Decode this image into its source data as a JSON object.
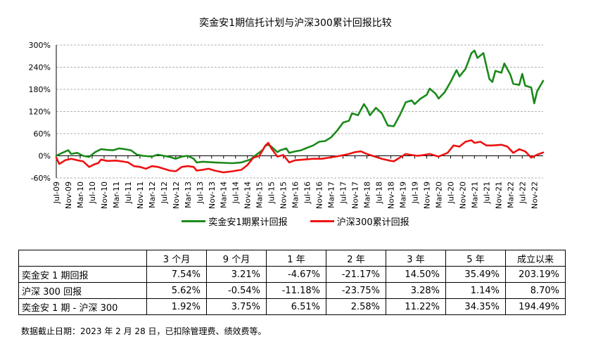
{
  "chart_data": {
    "type": "line",
    "title": "奕金安1期信托计划与沪深300累计回报比较",
    "ytick_labels": [
      "300%",
      "240%",
      "180%",
      "120%",
      "60%",
      "0%",
      "-60%"
    ],
    "ylim": [
      -60,
      300
    ],
    "yticks": [
      300,
      240,
      180,
      120,
      60,
      0,
      -60
    ],
    "grid": "dashed horizontal",
    "legend_position": "bottom",
    "xlim": [
      "2009-07",
      "2023-02"
    ],
    "xtick_labels": [
      "Jul-09",
      "Nov-09",
      "Mar-10",
      "Jul-10",
      "Nov-10",
      "Mar-11",
      "Jul-11",
      "Nov-11",
      "Mar-12",
      "Jul-12",
      "Nov-12",
      "Mar-13",
      "Jul-13",
      "Nov-13",
      "Mar-14",
      "Jul-14",
      "Nov-14",
      "Mar-15",
      "Jul-15",
      "Nov-15",
      "Mar-16",
      "Jul-16",
      "Nov-16",
      "Mar-17",
      "Jul-17",
      "Nov-17",
      "Mar-18",
      "Jul-18",
      "Nov-18",
      "Mar-19",
      "Jul-19",
      "Nov-19",
      "Mar-20",
      "Jul-20",
      "Nov-20",
      "Mar-21",
      "Jul-21",
      "Nov-21",
      "Mar-22",
      "Jul-22",
      "Nov-22"
    ],
    "series": [
      {
        "name": "奕金安1期累计回报",
        "color": "#1a8a1a",
        "points": [
          [
            "2009-07",
            0
          ],
          [
            "2009-09",
            8
          ],
          [
            "2009-11",
            15
          ],
          [
            "2009-12",
            5
          ],
          [
            "2010-02",
            8
          ],
          [
            "2010-04",
            0
          ],
          [
            "2010-06",
            -3
          ],
          [
            "2010-08",
            10
          ],
          [
            "2010-10",
            18
          ],
          [
            "2010-12",
            16
          ],
          [
            "2011-02",
            15
          ],
          [
            "2011-04",
            20
          ],
          [
            "2011-06",
            18
          ],
          [
            "2011-08",
            15
          ],
          [
            "2011-10",
            3
          ],
          [
            "2011-12",
            0
          ],
          [
            "2012-03",
            -2
          ],
          [
            "2012-05",
            3
          ],
          [
            "2012-07",
            0
          ],
          [
            "2012-09",
            -3
          ],
          [
            "2012-11",
            -8
          ],
          [
            "2013-01",
            -2
          ],
          [
            "2013-03",
            0
          ],
          [
            "2013-05",
            -8
          ],
          [
            "2013-06",
            -18
          ],
          [
            "2013-08",
            -16
          ],
          [
            "2013-10",
            -17
          ],
          [
            "2013-12",
            -18
          ],
          [
            "2014-03",
            -19
          ],
          [
            "2014-06",
            -20
          ],
          [
            "2014-09",
            -18
          ],
          [
            "2014-12",
            -10
          ],
          [
            "2015-02",
            3
          ],
          [
            "2015-04",
            15
          ],
          [
            "2015-05",
            27
          ],
          [
            "2015-06",
            30
          ],
          [
            "2015-07",
            25
          ],
          [
            "2015-09",
            10
          ],
          [
            "2015-10",
            15
          ],
          [
            "2015-12",
            20
          ],
          [
            "2016-01",
            8
          ],
          [
            "2016-03",
            12
          ],
          [
            "2016-05",
            15
          ],
          [
            "2016-07",
            22
          ],
          [
            "2016-09",
            28
          ],
          [
            "2016-11",
            38
          ],
          [
            "2017-01",
            40
          ],
          [
            "2017-03",
            50
          ],
          [
            "2017-05",
            68
          ],
          [
            "2017-07",
            90
          ],
          [
            "2017-09",
            95
          ],
          [
            "2017-10",
            115
          ],
          [
            "2017-12",
            110
          ],
          [
            "2018-02",
            140
          ],
          [
            "2018-03",
            128
          ],
          [
            "2018-04",
            110
          ],
          [
            "2018-06",
            130
          ],
          [
            "2018-08",
            115
          ],
          [
            "2018-10",
            82
          ],
          [
            "2018-12",
            80
          ],
          [
            "2019-02",
            110
          ],
          [
            "2019-04",
            145
          ],
          [
            "2019-06",
            150
          ],
          [
            "2019-07",
            140
          ],
          [
            "2019-09",
            155
          ],
          [
            "2019-11",
            165
          ],
          [
            "2019-12",
            182
          ],
          [
            "2020-02",
            168
          ],
          [
            "2020-03",
            155
          ],
          [
            "2020-05",
            172
          ],
          [
            "2020-07",
            200
          ],
          [
            "2020-09",
            232
          ],
          [
            "2020-10",
            215
          ],
          [
            "2020-12",
            235
          ],
          [
            "2021-02",
            278
          ],
          [
            "2021-03",
            285
          ],
          [
            "2021-04",
            265
          ],
          [
            "2021-06",
            278
          ],
          [
            "2021-08",
            208
          ],
          [
            "2021-09",
            200
          ],
          [
            "2021-10",
            230
          ],
          [
            "2021-12",
            225
          ],
          [
            "2022-01",
            250
          ],
          [
            "2022-03",
            220
          ],
          [
            "2022-04",
            195
          ],
          [
            "2022-06",
            192
          ],
          [
            "2022-07",
            222
          ],
          [
            "2022-08",
            190
          ],
          [
            "2022-10",
            185
          ],
          [
            "2022-11",
            142
          ],
          [
            "2022-12",
            175
          ],
          [
            "2023-02",
            203
          ]
        ]
      },
      {
        "name": "沪深300累计回报",
        "color": "#ee1111",
        "points": [
          [
            "2009-07",
            -5
          ],
          [
            "2009-08",
            -22
          ],
          [
            "2009-10",
            -12
          ],
          [
            "2009-12",
            -8
          ],
          [
            "2010-02",
            -12
          ],
          [
            "2010-04",
            -15
          ],
          [
            "2010-06",
            -30
          ],
          [
            "2010-08",
            -22
          ],
          [
            "2010-09",
            -20
          ],
          [
            "2010-10",
            -10
          ],
          [
            "2010-12",
            -14
          ],
          [
            "2011-03",
            -13
          ],
          [
            "2011-05",
            -15
          ],
          [
            "2011-07",
            -18
          ],
          [
            "2011-09",
            -28
          ],
          [
            "2011-11",
            -30
          ],
          [
            "2012-01",
            -35
          ],
          [
            "2012-03",
            -28
          ],
          [
            "2012-05",
            -30
          ],
          [
            "2012-07",
            -35
          ],
          [
            "2012-09",
            -40
          ],
          [
            "2012-11",
            -42
          ],
          [
            "2013-01",
            -30
          ],
          [
            "2013-03",
            -28
          ],
          [
            "2013-05",
            -30
          ],
          [
            "2013-06",
            -40
          ],
          [
            "2013-08",
            -38
          ],
          [
            "2013-10",
            -35
          ],
          [
            "2013-12",
            -40
          ],
          [
            "2014-03",
            -45
          ],
          [
            "2014-06",
            -42
          ],
          [
            "2014-09",
            -38
          ],
          [
            "2014-11",
            -25
          ],
          [
            "2015-01",
            -5
          ],
          [
            "2015-03",
            0
          ],
          [
            "2015-05",
            28
          ],
          [
            "2015-06",
            35
          ],
          [
            "2015-07",
            20
          ],
          [
            "2015-09",
            -2
          ],
          [
            "2015-11",
            2
          ],
          [
            "2016-01",
            -18
          ],
          [
            "2016-03",
            -12
          ],
          [
            "2016-06",
            -10
          ],
          [
            "2016-09",
            -8
          ],
          [
            "2016-12",
            -8
          ],
          [
            "2017-03",
            -4
          ],
          [
            "2017-06",
            0
          ],
          [
            "2017-09",
            5
          ],
          [
            "2017-11",
            10
          ],
          [
            "2018-01",
            12
          ],
          [
            "2018-03",
            5
          ],
          [
            "2018-06",
            -3
          ],
          [
            "2018-08",
            -8
          ],
          [
            "2018-10",
            -12
          ],
          [
            "2018-12",
            -15
          ],
          [
            "2019-02",
            -5
          ],
          [
            "2019-04",
            5
          ],
          [
            "2019-06",
            2
          ],
          [
            "2019-08",
            0
          ],
          [
            "2019-10",
            2
          ],
          [
            "2019-12",
            5
          ],
          [
            "2020-03",
            -2
          ],
          [
            "2020-06",
            8
          ],
          [
            "2020-08",
            28
          ],
          [
            "2020-10",
            25
          ],
          [
            "2020-12",
            38
          ],
          [
            "2021-02",
            42
          ],
          [
            "2021-03",
            35
          ],
          [
            "2021-05",
            38
          ],
          [
            "2021-07",
            28
          ],
          [
            "2021-09",
            28
          ],
          [
            "2021-12",
            30
          ],
          [
            "2022-02",
            25
          ],
          [
            "2022-04",
            8
          ],
          [
            "2022-06",
            18
          ],
          [
            "2022-08",
            12
          ],
          [
            "2022-10",
            -5
          ],
          [
            "2022-12",
            3
          ],
          [
            "2023-02",
            9
          ]
        ]
      }
    ]
  },
  "table": {
    "headers": [
      "",
      "3 个月",
      "9 个月",
      "1 年",
      "2 年",
      "3 年",
      "5 年",
      "成立以来"
    ],
    "rows": [
      {
        "label": "奕金安 1 期回报",
        "values": [
          "7.54%",
          "3.21%",
          "-4.67%",
          "-21.17%",
          "14.50%",
          "35.49%",
          "203.19%"
        ]
      },
      {
        "label": "沪深 300 回报",
        "values": [
          "5.62%",
          "-0.54%",
          "-11.18%",
          "-23.75%",
          "3.28%",
          "1.14%",
          "8.70%"
        ]
      },
      {
        "label": "奕金安 1 期 - 沪深 300",
        "values": [
          "1.92%",
          "3.75%",
          "6.51%",
          "2.58%",
          "11.22%",
          "34.35%",
          "194.49%"
        ]
      }
    ]
  },
  "footnote": "数据截止日期：2023 年 2 月 28 日，已扣除管理费、绩效费等。"
}
